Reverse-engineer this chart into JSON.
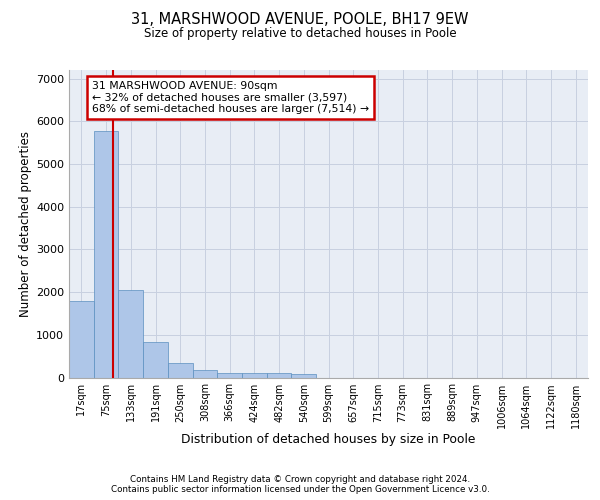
{
  "title_line1": "31, MARSHWOOD AVENUE, POOLE, BH17 9EW",
  "title_line2": "Size of property relative to detached houses in Poole",
  "xlabel": "Distribution of detached houses by size in Poole",
  "ylabel": "Number of detached properties",
  "bin_labels": [
    "17sqm",
    "75sqm",
    "133sqm",
    "191sqm",
    "250sqm",
    "308sqm",
    "366sqm",
    "424sqm",
    "482sqm",
    "540sqm",
    "599sqm",
    "657sqm",
    "715sqm",
    "773sqm",
    "831sqm",
    "889sqm",
    "947sqm",
    "1006sqm",
    "1064sqm",
    "1122sqm",
    "1180sqm"
  ],
  "bar_values": [
    1780,
    5780,
    2060,
    820,
    340,
    185,
    115,
    100,
    95,
    85,
    0,
    0,
    0,
    0,
    0,
    0,
    0,
    0,
    0,
    0,
    0
  ],
  "bar_color": "#aec6e8",
  "bar_edge_color": "#5a8fc0",
  "grid_color": "#c8d0e0",
  "bg_color": "#e8edf5",
  "vline_color": "#cc0000",
  "annotation_box_edgecolor": "#cc0000",
  "property_label": "31 MARSHWOOD AVENUE: 90sqm",
  "annotation_line1": "← 32% of detached houses are smaller (3,597)",
  "annotation_line2": "68% of semi-detached houses are larger (7,514) →",
  "ylim": [
    0,
    7200
  ],
  "yticks": [
    0,
    1000,
    2000,
    3000,
    4000,
    5000,
    6000,
    7000
  ],
  "vline_x": 1.27,
  "footer_line1": "Contains HM Land Registry data © Crown copyright and database right 2024.",
  "footer_line2": "Contains public sector information licensed under the Open Government Licence v3.0."
}
